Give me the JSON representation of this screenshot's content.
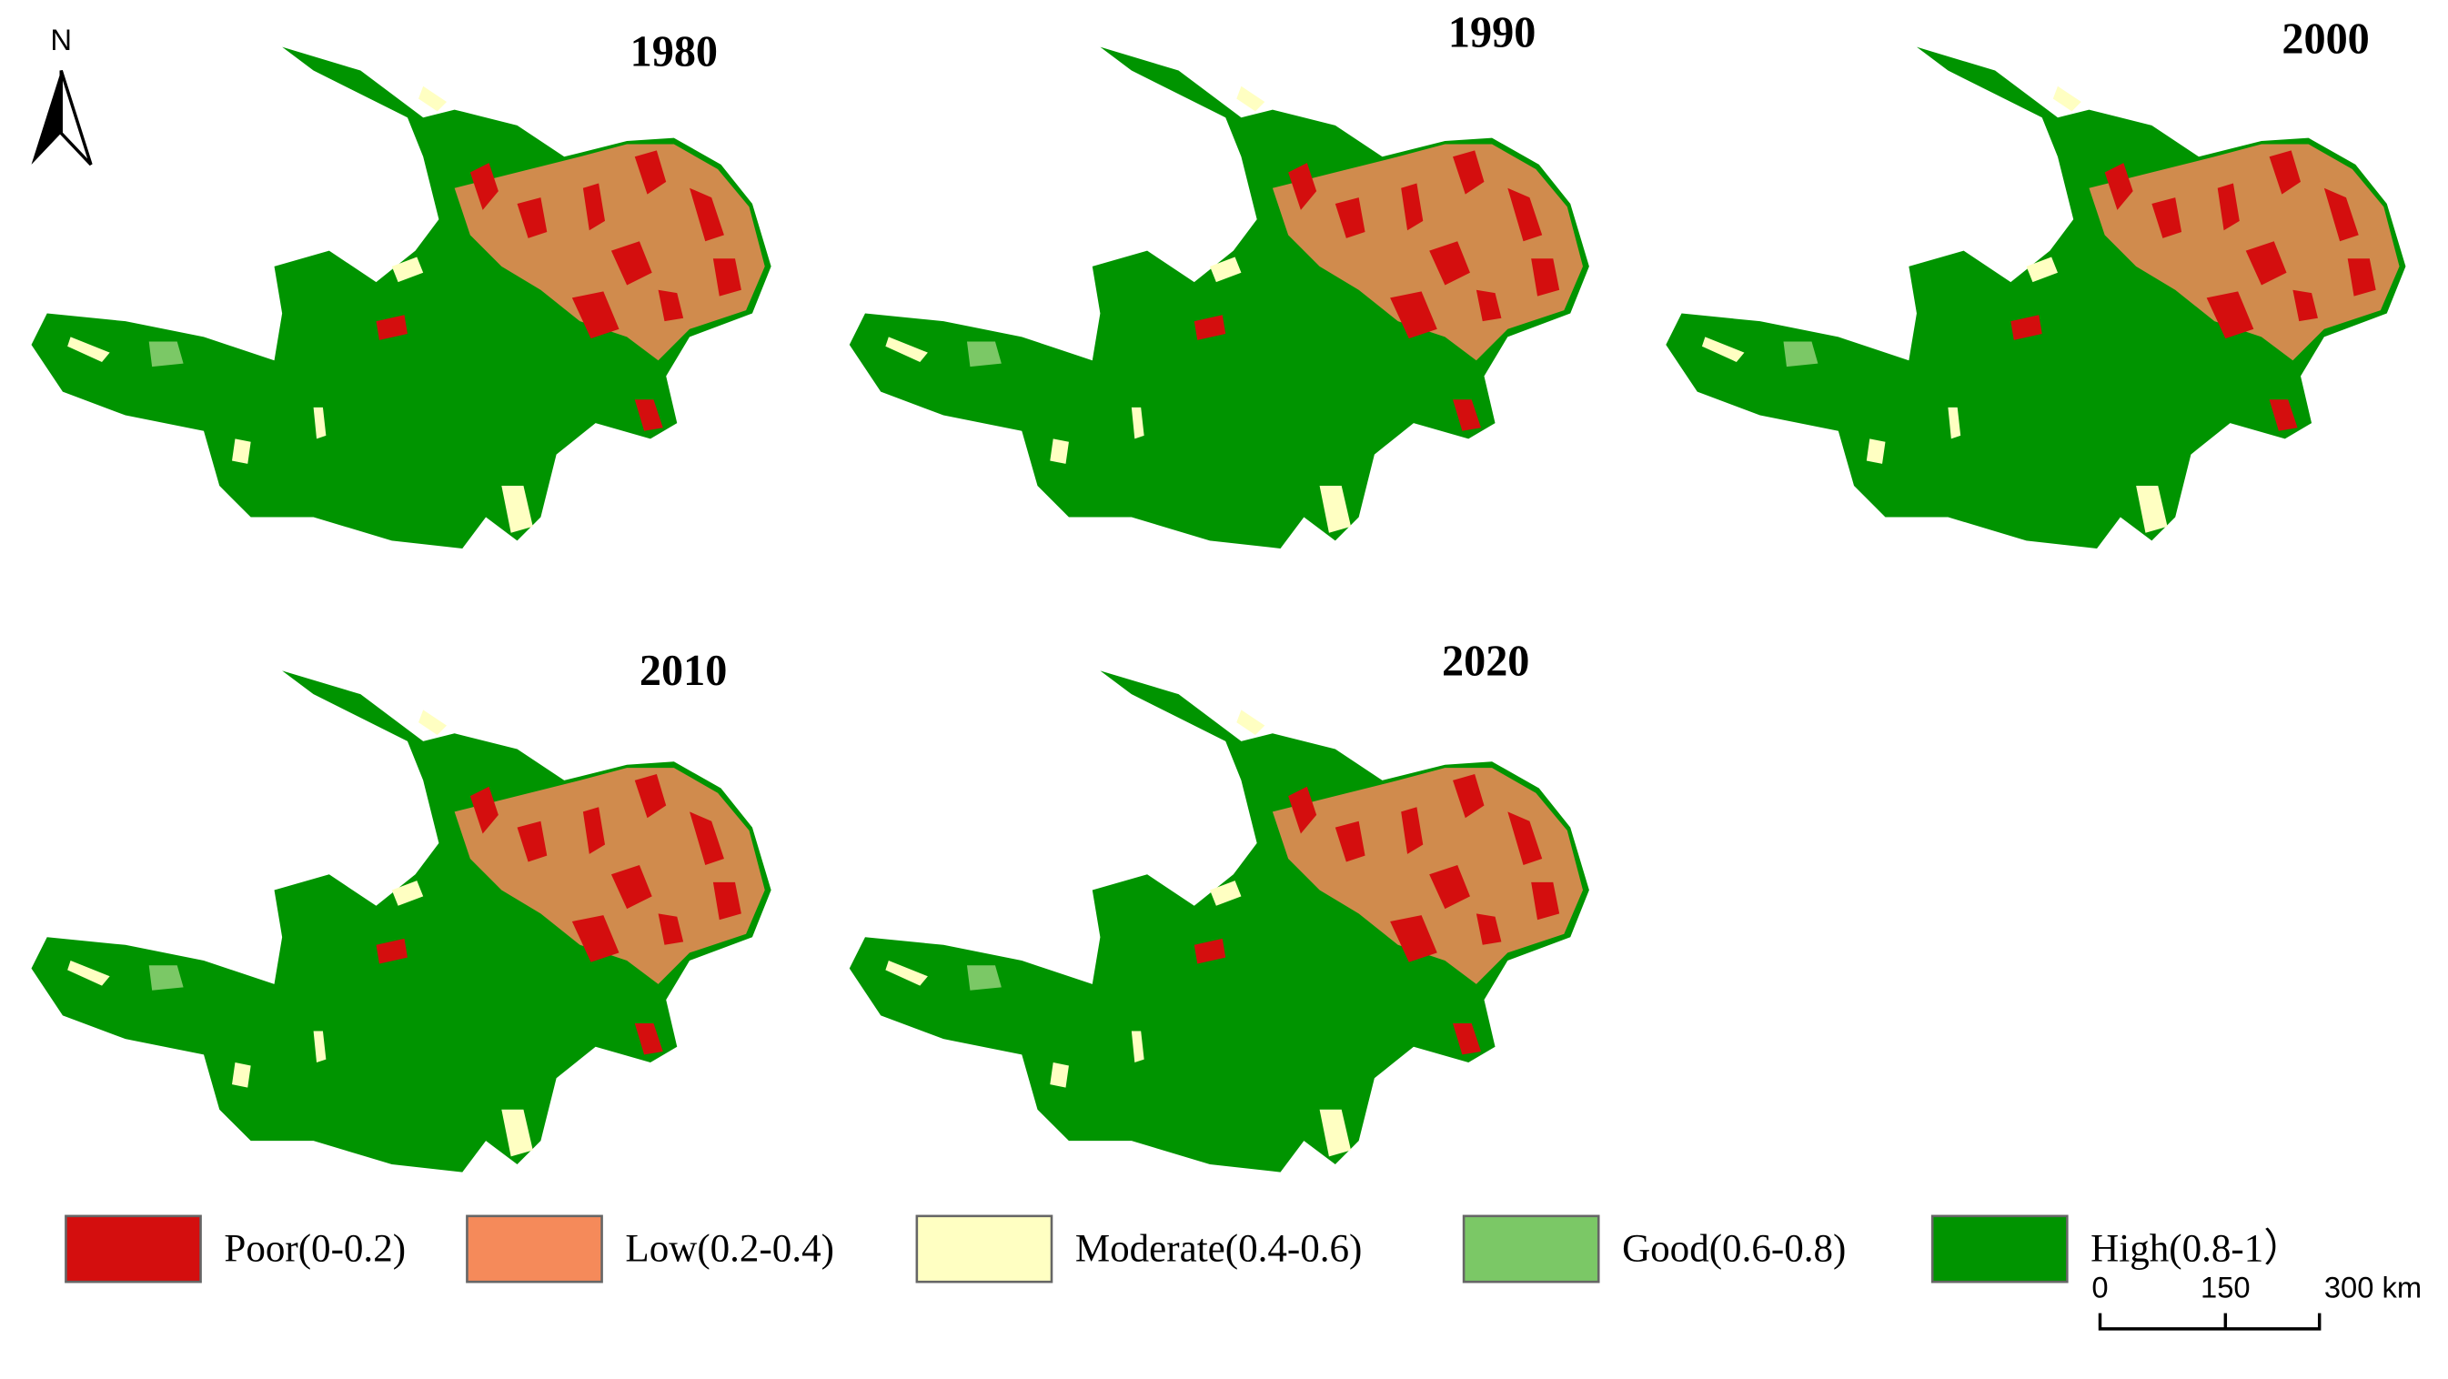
{
  "north_arrow": {
    "label": "N"
  },
  "panels": [
    {
      "title": "1980"
    },
    {
      "title": "1990"
    },
    {
      "title": "2000"
    },
    {
      "title": "2010"
    },
    {
      "title": "2020"
    }
  ],
  "legend": {
    "items": [
      {
        "label": "Poor(0-0.2)",
        "color": "#d40e0e"
      },
      {
        "label": "Low(0.2-0.4)",
        "color": "#f58a5a"
      },
      {
        "label": "Moderate(0.4-0.6)",
        "color": "#ffffc2"
      },
      {
        "label": "Good(0.6-0.8)",
        "color": "#7bc866"
      },
      {
        "label": "High(0.8-1）",
        "color": "#009400"
      }
    ]
  },
  "scale_bar": {
    "labels": [
      "0",
      "150",
      "300 km"
    ]
  }
}
